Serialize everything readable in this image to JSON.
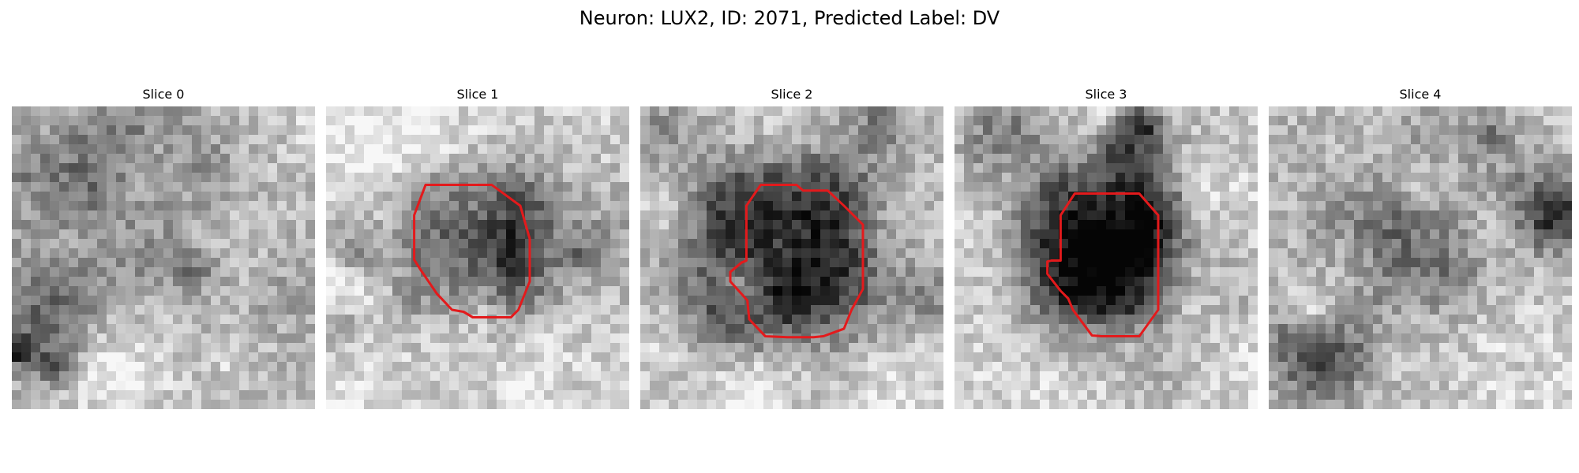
{
  "title": "Neuron: LUX2, ID: 2071, Predicted Label: DV",
  "contour_color": "#e31a1c",
  "colormap": "gray",
  "panels": [
    {
      "label": "Slice 0",
      "has_contour": false
    },
    {
      "label": "Slice 1",
      "has_contour": true
    },
    {
      "label": "Slice 2",
      "has_contour": true
    },
    {
      "label": "Slice 3",
      "has_contour": true
    },
    {
      "label": "Slice 4",
      "has_contour": false
    }
  ]
}
